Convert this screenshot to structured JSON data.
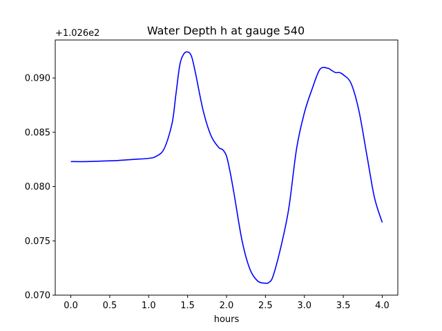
{
  "chart_data": {
    "type": "line",
    "title": "Water Depth h at gauge 540",
    "xlabel": "hours",
    "ylabel": "",
    "offset_text": "+1.026e2",
    "xlim": [
      -0.2,
      4.2
    ],
    "ylim": [
      0.07,
      0.0935
    ],
    "xticks": [
      0.0,
      0.5,
      1.0,
      1.5,
      2.0,
      2.5,
      3.0,
      3.5,
      4.0
    ],
    "xtick_labels": [
      "0.0",
      "0.5",
      "1.0",
      "1.5",
      "2.0",
      "2.5",
      "3.0",
      "3.5",
      "4.0"
    ],
    "yticks": [
      0.07,
      0.075,
      0.08,
      0.085,
      0.09
    ],
    "ytick_labels": [
      "0.070",
      "0.075",
      "0.080",
      "0.085",
      "0.090"
    ],
    "grid": false,
    "series": [
      {
        "color": "#0000ff",
        "x": [
          0.0,
          0.2,
          0.4,
          0.6,
          0.8,
          1.0,
          1.1,
          1.2,
          1.3,
          1.35,
          1.4,
          1.45,
          1.5,
          1.55,
          1.6,
          1.7,
          1.8,
          1.9,
          1.95,
          2.0,
          2.05,
          2.1,
          2.2,
          2.3,
          2.4,
          2.5,
          2.55,
          2.6,
          2.7,
          2.8,
          2.9,
          3.0,
          3.1,
          3.2,
          3.3,
          3.35,
          3.4,
          3.45,
          3.5,
          3.6,
          3.7,
          3.8,
          3.9,
          4.0
        ],
        "y": [
          0.0823,
          0.0823,
          0.08235,
          0.0824,
          0.0825,
          0.0826,
          0.0828,
          0.0835,
          0.0858,
          0.0885,
          0.0912,
          0.0922,
          0.0924,
          0.092,
          0.0905,
          0.087,
          0.0847,
          0.0836,
          0.0834,
          0.0828,
          0.0812,
          0.0792,
          0.075,
          0.0724,
          0.0713,
          0.0711,
          0.0712,
          0.0718,
          0.0745,
          0.078,
          0.0835,
          0.0868,
          0.089,
          0.0908,
          0.0909,
          0.0907,
          0.0905,
          0.0905,
          0.0903,
          0.0895,
          0.087,
          0.083,
          0.079,
          0.0767
        ]
      }
    ]
  }
}
